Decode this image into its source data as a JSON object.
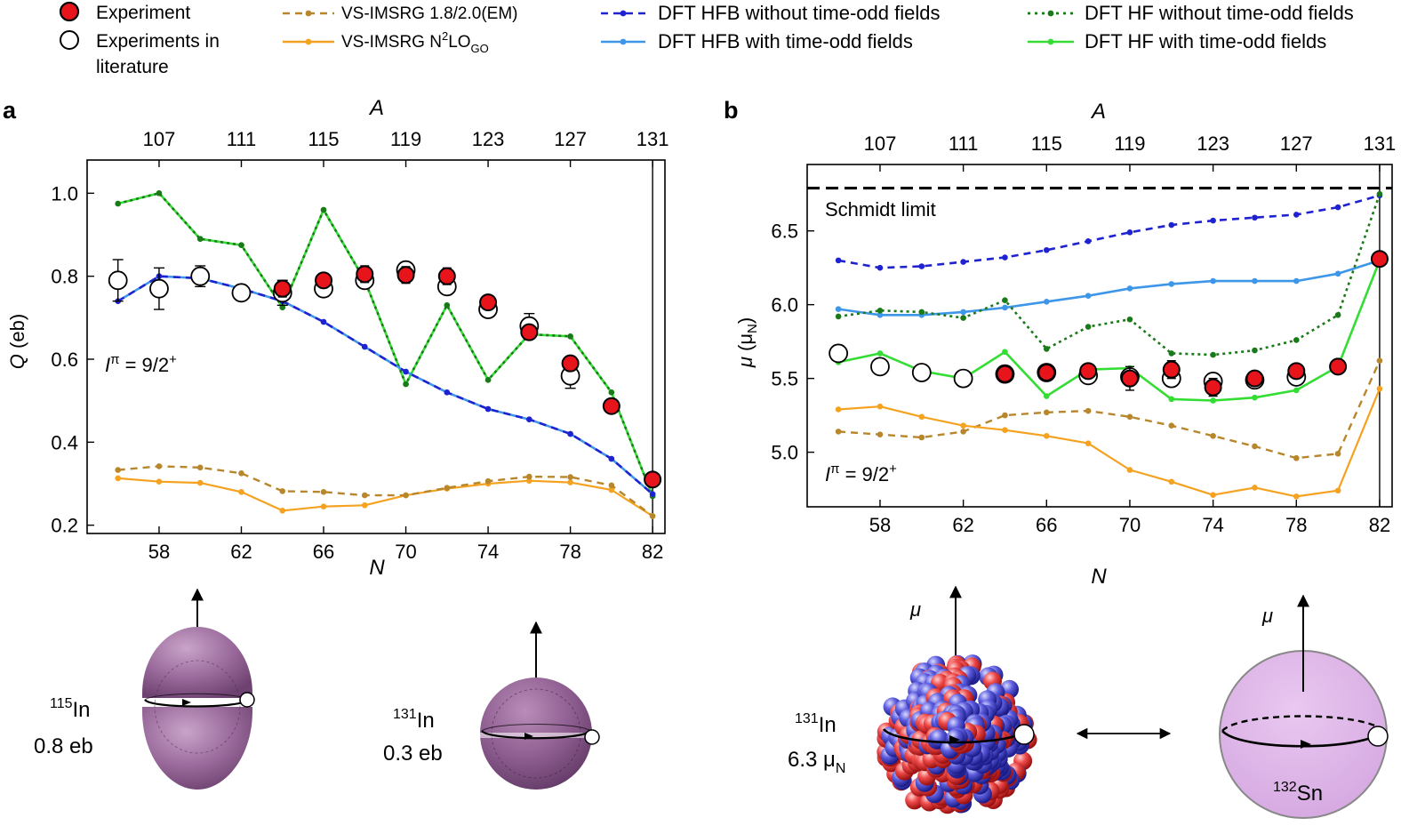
{
  "legend": {
    "experiment": "Experiment",
    "literature": [
      "Experiments in",
      "literature"
    ],
    "vs18": "VS-IMSRG 1.8/2.0(EM)",
    "vsn2lo": {
      "main": "VS-IMSRG N",
      "sup": "2",
      "mid": "LO",
      "sub": "GO"
    },
    "hfb_noodd": "DFT HFB without time-odd fields",
    "hfb_odd": "DFT HFB with time-odd fields",
    "hf_noodd": "DFT HF without time-odd fields",
    "hf_odd": "DFT HF with time-odd fields"
  },
  "colors": {
    "experiment": "#e8141c",
    "vs18": "#b8862b",
    "vsn2lo": "#f4a21f",
    "hfb_noodd": "#1f22d0",
    "hfb_odd": "#3e96e8",
    "hf_noodd": "#1a7a1a",
    "hf_odd": "#33dd33"
  },
  "panels": {
    "a": {
      "letter": "a",
      "top_label": "A",
      "bottom_label": "N",
      "y_label_main": "Q",
      "y_label_unit": " (eb)",
      "spin": {
        "sym": "I",
        "sup": "π",
        "val": " = 9/2",
        "plus": "+"
      }
    },
    "b": {
      "letter": "b",
      "top_label": "A",
      "bottom_label": "N",
      "y_label_main": "μ",
      "y_label_unit": " (μ",
      "y_label_sub": "N",
      "y_label_close": ")",
      "spin": {
        "sym": "I",
        "sup": "π",
        "val": " = 9/2",
        "plus": "+"
      },
      "schmidt": "Schmidt limit"
    }
  },
  "chart_data": [
    {
      "type": "line",
      "panel": "a",
      "xlabel": "N",
      "ylabel": "Q (eb)",
      "x_ticks": [
        58,
        62,
        66,
        70,
        74,
        78,
        82
      ],
      "top_ticks": [
        107,
        111,
        115,
        119,
        123,
        127,
        131
      ],
      "y_ticks": [
        "0.2",
        "0.4",
        "0.6",
        "0.8",
        "1.0"
      ],
      "xlim": [
        54.5,
        82.6
      ],
      "ylim": [
        0.18,
        1.08
      ],
      "vline_x": 82,
      "series": [
        {
          "name": "DFT HF without time-odd fields",
          "key": "hf_noodd",
          "x": [
            56,
            58,
            60,
            62,
            64,
            66,
            68,
            70,
            72,
            74,
            76,
            78,
            80,
            82
          ],
          "y": [
            0.975,
            1.0,
            0.89,
            0.875,
            0.725,
            0.96,
            0.79,
            0.54,
            0.73,
            0.55,
            0.66,
            0.655,
            0.52,
            0.27
          ]
        },
        {
          "name": "DFT HF with time-odd fields",
          "key": "hf_odd",
          "x": [
            56,
            58,
            60,
            62,
            64,
            66,
            68,
            70,
            72,
            74,
            76,
            78,
            80,
            82
          ],
          "y": [
            0.975,
            1.0,
            0.89,
            0.875,
            0.725,
            0.96,
            0.79,
            0.54,
            0.73,
            0.55,
            0.66,
            0.655,
            0.52,
            0.27
          ]
        },
        {
          "name": "DFT HFB without time-odd fields",
          "key": "hfb_noodd",
          "x": [
            56,
            58,
            60,
            62,
            64,
            66,
            68,
            70,
            72,
            74,
            76,
            78,
            80,
            82
          ],
          "y": [
            0.74,
            0.8,
            0.795,
            0.77,
            0.74,
            0.69,
            0.63,
            0.57,
            0.52,
            0.48,
            0.455,
            0.42,
            0.36,
            0.275
          ]
        },
        {
          "name": "DFT HFB with time-odd fields",
          "key": "hfb_odd",
          "x": [
            56,
            58,
            60,
            62,
            64,
            66,
            68,
            70,
            72,
            74,
            76,
            78,
            80,
            82
          ],
          "y": [
            0.74,
            0.8,
            0.795,
            0.77,
            0.74,
            0.69,
            0.63,
            0.57,
            0.52,
            0.48,
            0.455,
            0.42,
            0.36,
            0.275
          ]
        },
        {
          "name": "VS-IMSRG 1.8/2.0(EM)",
          "key": "vs18",
          "x": [
            56,
            58,
            60,
            62,
            64,
            66,
            68,
            70,
            72,
            74,
            76,
            78,
            80,
            82
          ],
          "y": [
            0.333,
            0.342,
            0.339,
            0.325,
            0.282,
            0.28,
            0.272,
            0.272,
            0.29,
            0.306,
            0.317,
            0.316,
            0.296,
            0.222
          ]
        },
        {
          "name": "VS-IMSRG N2LOGO",
          "key": "vsn2lo",
          "x": [
            56,
            58,
            60,
            62,
            64,
            66,
            68,
            70,
            72,
            74,
            76,
            78,
            80,
            82
          ],
          "y": [
            0.313,
            0.305,
            0.302,
            0.28,
            0.235,
            0.245,
            0.248,
            0.272,
            0.288,
            0.3,
            0.307,
            0.303,
            0.285,
            0.222
          ]
        }
      ],
      "literature": {
        "x": [
          56,
          58,
          60,
          62,
          64,
          66,
          68,
          70,
          72,
          74,
          76,
          78
        ],
        "y": [
          0.79,
          0.77,
          0.8,
          0.76,
          0.76,
          0.77,
          0.79,
          0.815,
          0.775,
          0.72,
          0.68,
          0.56
        ],
        "err": [
          0.05,
          0.05,
          0.025,
          0.01,
          0.03,
          0.01,
          0.015,
          0.015,
          0.01,
          0.015,
          0.03,
          0.03
        ]
      },
      "experiment": {
        "x": [
          64,
          66,
          68,
          70,
          72,
          74,
          76,
          78,
          80,
          82
        ],
        "y": [
          0.77,
          0.79,
          0.805,
          0.803,
          0.8,
          0.737,
          0.665,
          0.59,
          0.487,
          0.31
        ],
        "err": [
          0.02,
          0.015,
          0.02,
          0.02,
          0.02,
          0.015,
          0.01,
          0.015,
          0.01,
          0.01
        ]
      }
    },
    {
      "type": "line",
      "panel": "b",
      "xlabel": "N",
      "ylabel": "μ (μN)",
      "x_ticks": [
        58,
        62,
        66,
        70,
        74,
        78,
        82
      ],
      "top_ticks": [
        107,
        111,
        115,
        119,
        123,
        127,
        131
      ],
      "y_ticks": [
        "5.0",
        "5.5",
        "6.0",
        "6.5"
      ],
      "xlim": [
        54.5,
        82.6
      ],
      "ylim": [
        4.63,
        6.95
      ],
      "vline_x": 82,
      "schmidt_value": 6.79,
      "series": [
        {
          "name": "DFT HFB without time-odd fields",
          "key": "hfb_noodd",
          "x": [
            56,
            58,
            60,
            62,
            64,
            66,
            68,
            70,
            72,
            74,
            76,
            78,
            80,
            82
          ],
          "y": [
            6.3,
            6.25,
            6.26,
            6.29,
            6.32,
            6.37,
            6.43,
            6.49,
            6.54,
            6.57,
            6.59,
            6.61,
            6.66,
            6.74
          ]
        },
        {
          "name": "DFT HFB with time-odd fields",
          "key": "hfb_odd",
          "x": [
            56,
            58,
            60,
            62,
            64,
            66,
            68,
            70,
            72,
            74,
            76,
            78,
            80,
            82
          ],
          "y": [
            5.97,
            5.93,
            5.93,
            5.95,
            5.98,
            6.02,
            6.06,
            6.11,
            6.14,
            6.16,
            6.16,
            6.16,
            6.21,
            6.3
          ]
        },
        {
          "name": "DFT HF without time-odd fields",
          "key": "hf_noodd",
          "x": [
            56,
            58,
            60,
            62,
            64,
            66,
            68,
            70,
            72,
            74,
            76,
            78,
            80,
            82
          ],
          "y": [
            5.92,
            5.96,
            5.95,
            5.91,
            6.03,
            5.7,
            5.85,
            5.9,
            5.67,
            5.66,
            5.69,
            5.76,
            5.93,
            6.75
          ]
        },
        {
          "name": "DFT HF with time-odd fields",
          "key": "hf_odd",
          "x": [
            56,
            58,
            60,
            62,
            64,
            66,
            68,
            70,
            72,
            74,
            76,
            78,
            80,
            82
          ],
          "y": [
            5.61,
            5.67,
            5.55,
            5.5,
            5.68,
            5.38,
            5.56,
            5.57,
            5.36,
            5.35,
            5.37,
            5.42,
            5.58,
            6.3
          ]
        },
        {
          "name": "VS-IMSRG 1.8/2.0(EM)",
          "key": "vs18",
          "x": [
            56,
            58,
            60,
            62,
            64,
            66,
            68,
            70,
            72,
            74,
            76,
            78,
            80,
            82
          ],
          "y": [
            5.14,
            5.12,
            5.1,
            5.14,
            5.25,
            5.27,
            5.28,
            5.24,
            5.18,
            5.11,
            5.04,
            4.96,
            4.99,
            5.62
          ]
        },
        {
          "name": "VS-IMSRG N2LOGO",
          "key": "vsn2lo",
          "x": [
            56,
            58,
            60,
            62,
            64,
            66,
            68,
            70,
            72,
            74,
            76,
            78,
            80,
            82
          ],
          "y": [
            5.29,
            5.31,
            5.24,
            5.18,
            5.15,
            5.11,
            5.06,
            4.88,
            4.8,
            4.71,
            4.76,
            4.7,
            4.74,
            5.43
          ]
        }
      ],
      "literature": {
        "x": [
          56,
          58,
          60,
          62,
          64,
          66,
          68,
          70,
          72,
          74,
          76,
          78
        ],
        "y": [
          5.67,
          5.58,
          5.54,
          5.5,
          5.53,
          5.54,
          5.52,
          5.51,
          5.5,
          5.48,
          5.49,
          5.51
        ],
        "err": [
          0,
          0,
          0,
          0,
          0,
          0,
          0,
          0,
          0,
          0,
          0,
          0
        ]
      },
      "experiment": {
        "x": [
          64,
          66,
          68,
          70,
          72,
          74,
          76,
          78,
          80,
          82
        ],
        "y": [
          5.53,
          5.54,
          5.55,
          5.5,
          5.56,
          5.44,
          5.5,
          5.55,
          5.58,
          6.31
        ],
        "err": [
          0.02,
          0.02,
          0.02,
          0.08,
          0.06,
          0.06,
          0.03,
          0.02,
          0.02,
          0.02
        ]
      }
    }
  ],
  "illustrations": {
    "in115": {
      "mass": "115",
      "el": "In",
      "value": "0.8 eb"
    },
    "in131a": {
      "mass": "131",
      "el": "In",
      "value": "0.3 eb"
    },
    "in131b": {
      "mass": "131",
      "el": "In",
      "value": "6.3 μ",
      "value_sub": "N",
      "mu": "μ"
    },
    "sn132": {
      "mass": "132",
      "el": "Sn",
      "mu": "μ"
    }
  }
}
